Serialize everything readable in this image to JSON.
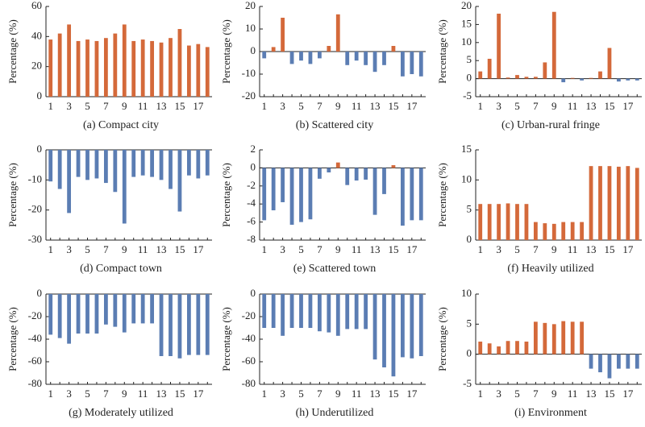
{
  "chart_data": [
    {
      "type": "bar",
      "title": "(a) Compact city",
      "ylabel": "Percentage (%)",
      "categories": [
        1,
        null,
        3,
        null,
        5,
        null,
        7,
        null,
        9,
        null,
        11,
        null,
        13,
        null,
        15,
        null,
        17,
        null
      ],
      "values": [
        38,
        42,
        48,
        37,
        38,
        37,
        39,
        42,
        48,
        37,
        38,
        37,
        36,
        39,
        45,
        34,
        35,
        33
      ],
      "ylim": [
        0,
        60
      ],
      "yticks": [
        0,
        20,
        40,
        60
      ],
      "positive_color": "#d4693a",
      "negative_color": "#5b7db3"
    },
    {
      "type": "bar",
      "title": "(b) Scattered city",
      "ylabel": "Percentage (%)",
      "categories": [
        1,
        null,
        3,
        null,
        5,
        null,
        7,
        null,
        9,
        null,
        11,
        null,
        13,
        null,
        15,
        null,
        17,
        null
      ],
      "values": [
        -3,
        2,
        15,
        -5.5,
        -4,
        -5.5,
        -3,
        2.5,
        16.5,
        -6,
        -4,
        -6,
        -9,
        -6,
        2.5,
        -11,
        -10,
        -11
      ],
      "ylim": [
        -20,
        20
      ],
      "yticks": [
        -20,
        -10,
        0,
        10,
        20
      ],
      "positive_color": "#d4693a",
      "negative_color": "#5b7db3"
    },
    {
      "type": "bar",
      "title": "(c) Urban-rural fringe",
      "ylabel": "Percentage (%)",
      "categories": [
        1,
        null,
        3,
        null,
        5,
        null,
        7,
        null,
        9,
        null,
        11,
        null,
        13,
        null,
        15,
        null,
        17,
        null
      ],
      "values": [
        2,
        5.5,
        18,
        0.3,
        1,
        0.5,
        0.5,
        4.5,
        18.5,
        -1,
        0.2,
        -0.5,
        0.2,
        2,
        8.5,
        -0.8,
        -0.5,
        -0.5
      ],
      "ylim": [
        -5,
        20
      ],
      "yticks": [
        -5,
        0,
        5,
        10,
        15,
        20
      ],
      "positive_color": "#d4693a",
      "negative_color": "#5b7db3"
    },
    {
      "type": "bar",
      "title": "(d) Compact town",
      "ylabel": "Percentage (%)",
      "categories": [
        1,
        null,
        3,
        null,
        5,
        null,
        7,
        null,
        9,
        null,
        11,
        null,
        13,
        null,
        15,
        null,
        17,
        null
      ],
      "values": [
        -10.5,
        -13,
        -21,
        -9,
        -10,
        -9.5,
        -11,
        -14,
        -24.5,
        -9,
        -8.5,
        -9,
        -10,
        -13,
        -20.5,
        -8.5,
        -9.5,
        -8.5
      ],
      "ylim": [
        -30,
        0
      ],
      "yticks": [
        -30,
        -20,
        -10,
        0
      ],
      "positive_color": "#d4693a",
      "negative_color": "#5b7db3"
    },
    {
      "type": "bar",
      "title": "(e) Scattered town",
      "ylabel": "Percentage (%)",
      "categories": [
        1,
        null,
        3,
        null,
        5,
        null,
        7,
        null,
        9,
        null,
        11,
        null,
        13,
        null,
        15,
        null,
        17,
        null
      ],
      "values": [
        -5.8,
        -4.7,
        -3.8,
        -6.3,
        -6,
        -5.7,
        -1.2,
        -0.5,
        0.6,
        -1.9,
        -1.4,
        -1.3,
        -5.2,
        -2.9,
        0.3,
        -6.4,
        -5.8,
        -5.8
      ],
      "ylim": [
        -8,
        2
      ],
      "yticks": [
        -8,
        -6,
        -4,
        -2,
        0,
        2
      ],
      "positive_color": "#d4693a",
      "negative_color": "#5b7db3"
    },
    {
      "type": "bar",
      "title": "(f) Heavily utilized",
      "ylabel": "Percentage (%)",
      "categories": [
        1,
        null,
        3,
        null,
        5,
        null,
        7,
        null,
        9,
        null,
        11,
        null,
        13,
        null,
        15,
        null,
        17,
        null
      ],
      "values": [
        6,
        6,
        6,
        6.1,
        6,
        6,
        3,
        2.8,
        2.7,
        3,
        3,
        3,
        12.3,
        12.3,
        12.3,
        12.2,
        12.3,
        12
      ],
      "ylim": [
        0,
        15
      ],
      "yticks": [
        0,
        5,
        10,
        15
      ],
      "positive_color": "#d4693a",
      "negative_color": "#5b7db3"
    },
    {
      "type": "bar",
      "title": "(g) Moderately utilized",
      "ylabel": "Percentage (%)",
      "categories": [
        1,
        null,
        3,
        null,
        5,
        null,
        7,
        null,
        9,
        null,
        11,
        null,
        13,
        null,
        15,
        null,
        17,
        null
      ],
      "values": [
        -36,
        -39,
        -44,
        -35,
        -35,
        -35,
        -27,
        -29,
        -34,
        -26,
        -26,
        -26,
        -55,
        -55,
        -57,
        -54,
        -54,
        -54
      ],
      "ylim": [
        -80,
        0
      ],
      "yticks": [
        -80,
        -60,
        -40,
        -20,
        0
      ],
      "positive_color": "#d4693a",
      "negative_color": "#5b7db3"
    },
    {
      "type": "bar",
      "title": "(h) Underutilized",
      "ylabel": "Percentage (%)",
      "categories": [
        1,
        null,
        3,
        null,
        5,
        null,
        7,
        null,
        9,
        null,
        11,
        null,
        13,
        null,
        15,
        null,
        17,
        null
      ],
      "values": [
        -30,
        -30,
        -37,
        -30,
        -30,
        -30,
        -33,
        -34,
        -37,
        -31,
        -31,
        -31,
        -58,
        -65,
        -73,
        -56,
        -57,
        -55
      ],
      "ylim": [
        -80,
        0
      ],
      "yticks": [
        -80,
        -60,
        -40,
        -20,
        0
      ],
      "positive_color": "#d4693a",
      "negative_color": "#5b7db3"
    },
    {
      "type": "bar",
      "title": "(i) Environment",
      "ylabel": "Percentage (%)",
      "categories": [
        1,
        null,
        3,
        null,
        5,
        null,
        7,
        null,
        9,
        null,
        11,
        null,
        13,
        null,
        15,
        null,
        17,
        null
      ],
      "values": [
        2.1,
        1.8,
        1.3,
        2.2,
        2.2,
        2.1,
        5.4,
        5.2,
        5,
        5.5,
        5.4,
        5.4,
        -2.4,
        -3,
        -4,
        -2.4,
        -2.4,
        -2.4
      ],
      "ylim": [
        -5,
        10
      ],
      "yticks": [
        -5,
        0,
        5,
        10
      ],
      "positive_color": "#d4693a",
      "negative_color": "#5b7db3"
    }
  ]
}
